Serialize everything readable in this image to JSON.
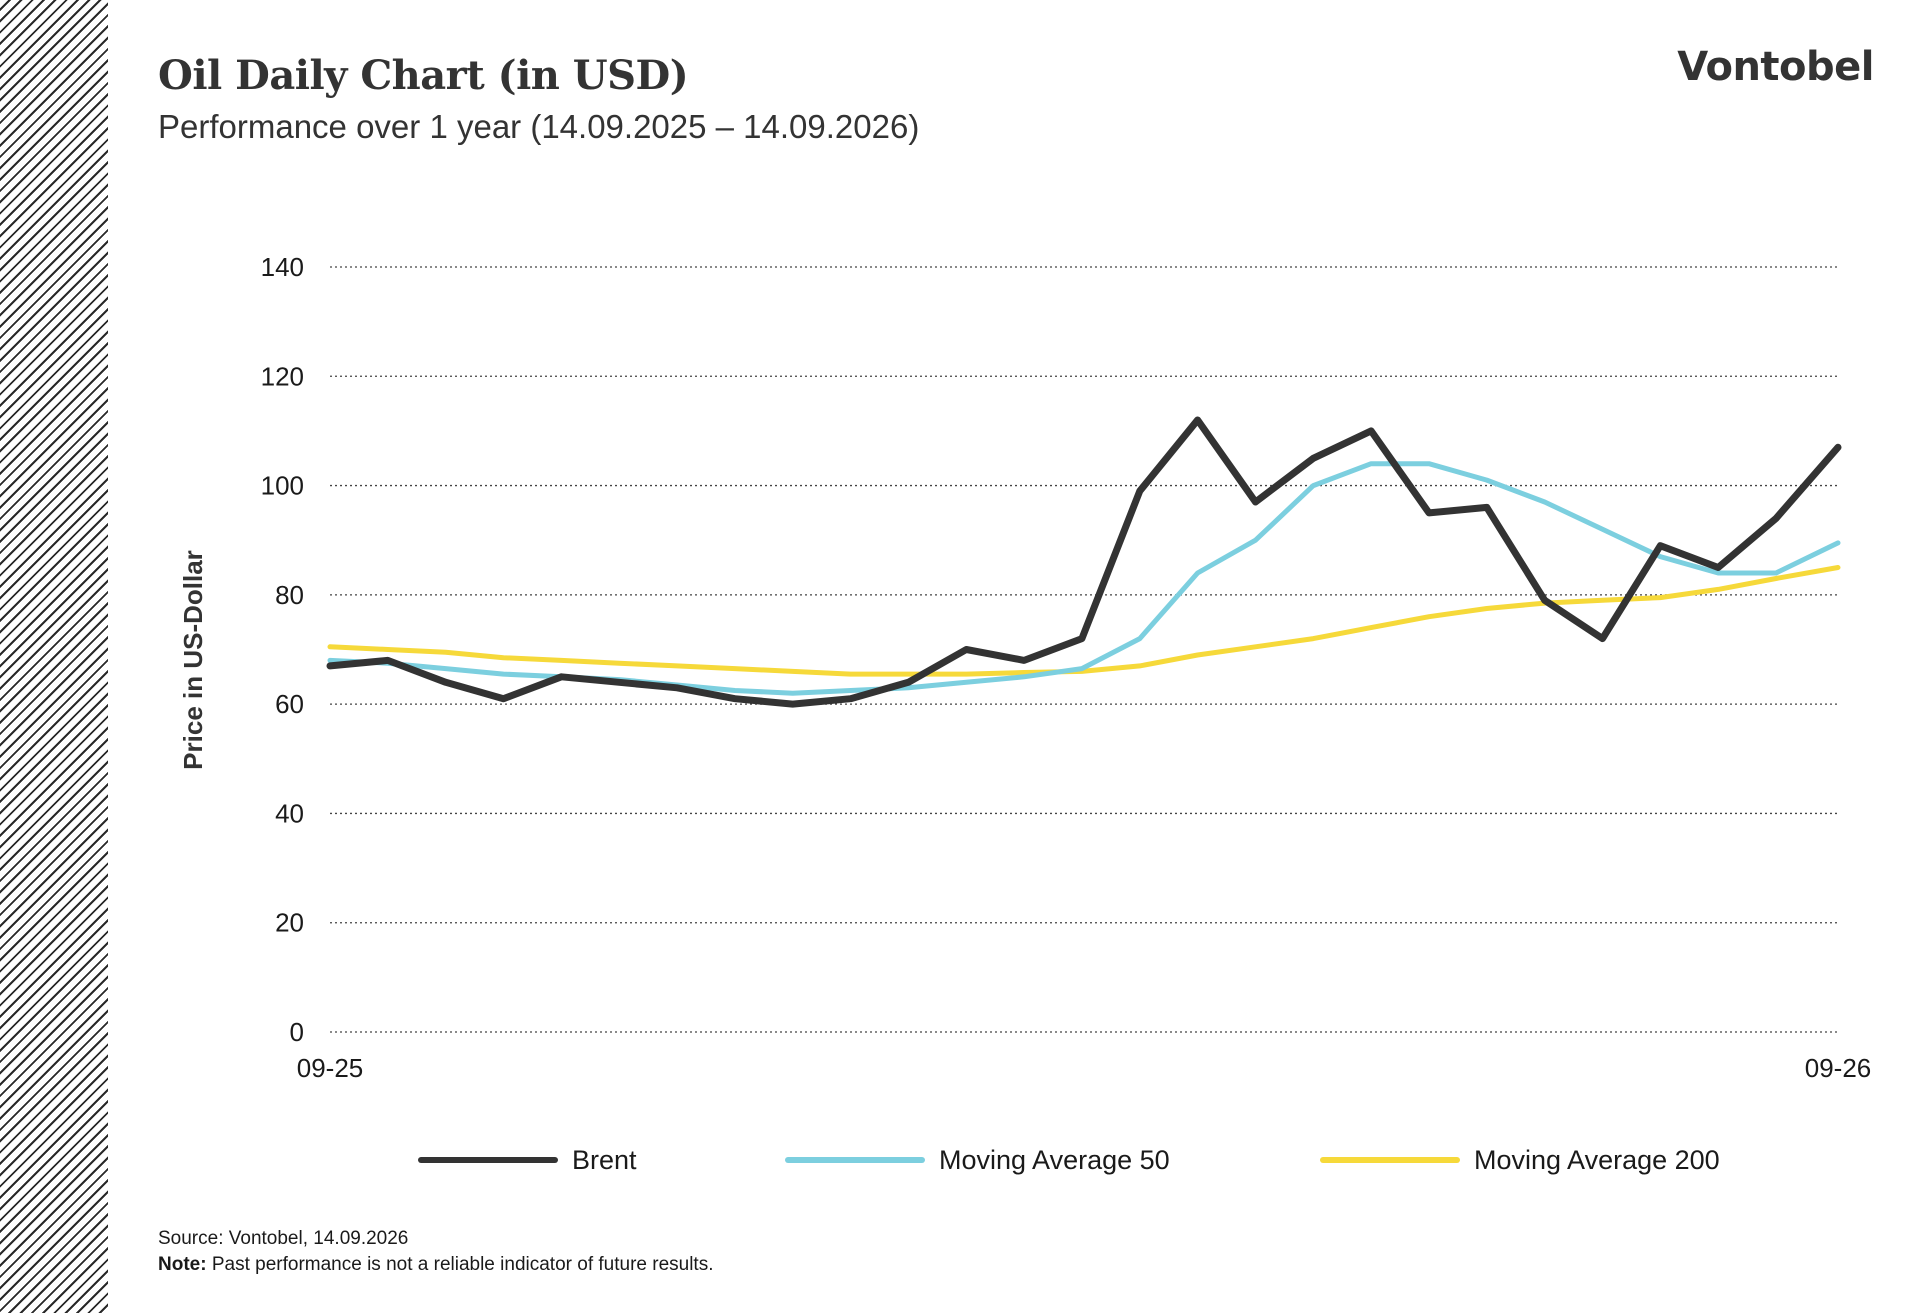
{
  "header": {
    "title": "Oil Daily Chart (in USD)",
    "subtitle": "Performance over 1 year (14.09.2025 – 14.09.2026)",
    "brand": "Vontobel"
  },
  "footer": {
    "source": "Source: Vontobel, 14.09.2026",
    "note_label": "Note:",
    "note_text": "Past performance is not a reliable indicator of future results."
  },
  "chart_data": {
    "type": "line",
    "title": "Oil Daily Chart (in USD)",
    "subtitle": "Performance over 1 year (14.09.2025 – 14.09.2026)",
    "xlabel": "",
    "ylabel": "Price in US-Dollar",
    "x_tick_labels": [
      "09-25",
      "09-26"
    ],
    "x_range": [
      "2025-09-14",
      "2026-09-14"
    ],
    "ylim": [
      0,
      140
    ],
    "y_ticks": [
      0,
      20,
      40,
      60,
      80,
      100,
      120,
      140
    ],
    "grid": "horizontal dotted",
    "legend_position": "bottom",
    "x": [
      "2025-09-14",
      "2025-09-28",
      "2025-10-12",
      "2025-10-26",
      "2025-11-09",
      "2025-11-23",
      "2025-12-07",
      "2025-12-21",
      "2026-01-04",
      "2026-01-18",
      "2026-02-01",
      "2026-02-15",
      "2026-03-01",
      "2026-03-15",
      "2026-03-29",
      "2026-04-12",
      "2026-04-26",
      "2026-05-10",
      "2026-05-24",
      "2026-06-07",
      "2026-06-21",
      "2026-07-05",
      "2026-07-19",
      "2026-08-02",
      "2026-08-16",
      "2026-08-30",
      "2026-09-14"
    ],
    "series": [
      {
        "name": "Brent",
        "color": "#333333",
        "values": [
          67,
          68,
          64,
          61,
          65,
          64,
          63,
          61,
          60,
          61,
          64,
          70,
          68,
          72,
          99,
          112,
          97,
          105,
          110,
          95,
          96,
          79,
          72,
          89,
          85,
          94,
          107
        ]
      },
      {
        "name": "Moving Average 50",
        "color": "#7ccfdf",
        "values": [
          68,
          67.5,
          66.5,
          65.5,
          65,
          64.5,
          63.5,
          62.5,
          62,
          62.5,
          63,
          64,
          65,
          66.5,
          72,
          84,
          90,
          100,
          104,
          104,
          101,
          97,
          92,
          87,
          84,
          84,
          89.5
        ]
      },
      {
        "name": "Moving Average 200",
        "color": "#f6d93a",
        "values": [
          70.5,
          70,
          69.5,
          68.5,
          68,
          67.5,
          67,
          66.5,
          66,
          65.5,
          65.5,
          65.5,
          65.8,
          66,
          67,
          69,
          70.5,
          72,
          74,
          76,
          77.5,
          78.5,
          79,
          79.5,
          81,
          83,
          85
        ]
      }
    ]
  }
}
